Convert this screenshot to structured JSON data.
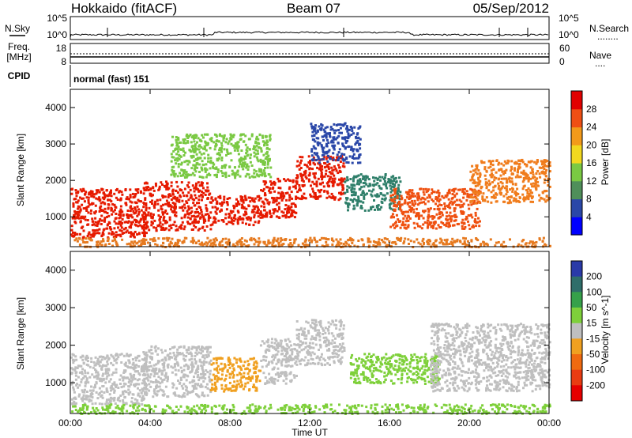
{
  "header": {
    "station": "Hokkaido (fitACF)",
    "beam": "Beam 07",
    "date": "05/Sep/2012"
  },
  "strip": {
    "nsky_label": "N.Sky",
    "nsearch_label": "N.Search",
    "freq_label_1": "Freq.",
    "freq_label_2": "[MHz]",
    "nave_label": "Nave",
    "cpid_label": "CPID",
    "cpid_value": "normal (fast) 151",
    "nsky_ticks": [
      "10^5",
      "10^0"
    ],
    "nsearch_ticks": [
      "10^5",
      "10^0"
    ],
    "freq_ticks": [
      "18",
      "8"
    ],
    "nave_ticks": [
      "60",
      "0"
    ],
    "nsearch_legend": "........",
    "nave_legend": "...."
  },
  "chart_data": [
    {
      "type": "heatmap",
      "name": "power",
      "ylabel": "Slant Range [km]",
      "xlabel": "",
      "colorbar_label": "Power [dB]",
      "x_ticks": [
        "00:00",
        "04:00",
        "08:00",
        "12:00",
        "16:00",
        "20:00",
        "00:00"
      ],
      "y_ticks": [
        1000,
        2000,
        3000,
        4000
      ],
      "ylim": [
        180,
        4500
      ],
      "xlim_hours": [
        0,
        24
      ],
      "colorbar_ticks": [
        "4",
        "8",
        "12",
        "16",
        "20",
        "24",
        "28"
      ],
      "colorbar_colors": [
        "#0000ff",
        "#2a47a8",
        "#4f8f5a",
        "#7ac943",
        "#f2d81f",
        "#f39a1a",
        "#ef4f14",
        "#e10000"
      ],
      "regions": [
        {
          "t0": 0.0,
          "t1": 3.8,
          "r0": 450,
          "r1": 1800,
          "color": "#e61a00"
        },
        {
          "t0": 3.6,
          "t1": 7.0,
          "r0": 650,
          "r1": 2000,
          "color": "#e61a00"
        },
        {
          "t0": 7.0,
          "t1": 9.5,
          "r0": 800,
          "r1": 1600,
          "color": "#e61a00"
        },
        {
          "t0": 9.5,
          "t1": 11.3,
          "r0": 1000,
          "r1": 2100,
          "color": "#e61a00"
        },
        {
          "t0": 11.3,
          "t1": 13.7,
          "r0": 1500,
          "r1": 2700,
          "color": "#e61a00"
        },
        {
          "t0": 13.7,
          "t1": 16.5,
          "r0": 1200,
          "r1": 2200,
          "color": "#2f7f6a"
        },
        {
          "t0": 16.0,
          "t1": 20.5,
          "r0": 700,
          "r1": 1800,
          "color": "#ef5010"
        },
        {
          "t0": 20.0,
          "t1": 24.0,
          "r0": 1400,
          "r1": 2600,
          "color": "#f07c1c"
        },
        {
          "t0": 5.0,
          "t1": 10.0,
          "r0": 2100,
          "r1": 3300,
          "color": "#7ac943"
        },
        {
          "t0": 12.0,
          "t1": 14.5,
          "r0": 2500,
          "r1": 3600,
          "color": "#2a47a8"
        },
        {
          "t0": 0.0,
          "t1": 24.0,
          "r0": 200,
          "r1": 450,
          "color": "#e67a20"
        }
      ]
    },
    {
      "type": "heatmap",
      "name": "velocity",
      "ylabel": "Slant Range [km]",
      "xlabel": "Time UT",
      "colorbar_label": "Velocity [m s^-1]",
      "x_ticks": [
        "00:00",
        "04:00",
        "08:00",
        "12:00",
        "16:00",
        "20:00",
        "00:00"
      ],
      "y_ticks": [
        1000,
        2000,
        3000,
        4000
      ],
      "ylim": [
        180,
        4500
      ],
      "xlim_hours": [
        0,
        24
      ],
      "colorbar_ticks": [
        "200",
        "100",
        "50",
        "15",
        "-15",
        "-50",
        "-100",
        "-200"
      ],
      "colorbar_colors": [
        "#2a3aa8",
        "#2f6e6a",
        "#36a14a",
        "#7ed03a",
        "#bfbfbf",
        "#f0a020",
        "#f06a10",
        "#e93c12",
        "#e60000"
      ],
      "regions": [
        {
          "t0": 0.0,
          "t1": 3.8,
          "r0": 450,
          "r1": 1800,
          "color": "#bfbfbf"
        },
        {
          "t0": 3.6,
          "t1": 7.0,
          "r0": 650,
          "r1": 2000,
          "color": "#bfbfbf"
        },
        {
          "t0": 7.0,
          "t1": 9.5,
          "r0": 800,
          "r1": 1700,
          "color": "#f0a020"
        },
        {
          "t0": 9.5,
          "t1": 11.3,
          "r0": 1000,
          "r1": 2200,
          "color": "#bfbfbf"
        },
        {
          "t0": 11.3,
          "t1": 13.7,
          "r0": 1500,
          "r1": 2700,
          "color": "#bfbfbf"
        },
        {
          "t0": 14.0,
          "t1": 18.5,
          "r0": 1000,
          "r1": 1800,
          "color": "#7ed03a"
        },
        {
          "t0": 18.0,
          "t1": 24.0,
          "r0": 800,
          "r1": 2600,
          "color": "#bfbfbf"
        },
        {
          "t0": 0.0,
          "t1": 24.0,
          "r0": 200,
          "r1": 450,
          "color": "#7ed03a"
        }
      ]
    }
  ]
}
